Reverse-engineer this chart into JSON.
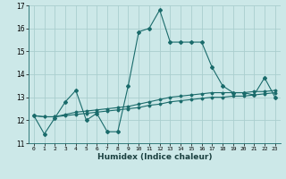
{
  "xlabel": "Humidex (Indice chaleur)",
  "background_color": "#cce8e8",
  "grid_color": "#aacece",
  "line_color": "#1a6b6b",
  "xlim": [
    -0.5,
    23.5
  ],
  "ylim": [
    11,
    17
  ],
  "yticks": [
    11,
    12,
    13,
    14,
    15,
    16,
    17
  ],
  "xticks": [
    0,
    1,
    2,
    3,
    4,
    5,
    6,
    7,
    8,
    9,
    10,
    11,
    12,
    13,
    14,
    15,
    16,
    17,
    18,
    19,
    20,
    21,
    22,
    23
  ],
  "hours": [
    0,
    1,
    2,
    3,
    4,
    5,
    6,
    7,
    8,
    9,
    10,
    11,
    12,
    13,
    14,
    15,
    16,
    17,
    18,
    19,
    20,
    21,
    22,
    23
  ],
  "main_line": [
    12.2,
    11.4,
    12.1,
    12.8,
    13.3,
    12.0,
    12.3,
    11.5,
    11.5,
    13.5,
    15.85,
    16.0,
    16.8,
    15.4,
    15.4,
    15.4,
    15.4,
    14.3,
    13.5,
    13.2,
    13.2,
    13.1,
    13.85,
    13.0
  ],
  "ref_line1": [
    12.2,
    12.15,
    12.15,
    12.25,
    12.35,
    12.4,
    12.45,
    12.5,
    12.55,
    12.6,
    12.7,
    12.8,
    12.9,
    13.0,
    13.05,
    13.1,
    13.15,
    13.2,
    13.2,
    13.2,
    13.2,
    13.25,
    13.25,
    13.3
  ],
  "ref_line2": [
    12.2,
    12.15,
    12.15,
    12.2,
    12.25,
    12.3,
    12.35,
    12.4,
    12.45,
    12.5,
    12.55,
    12.65,
    12.7,
    12.8,
    12.85,
    12.9,
    12.95,
    13.0,
    13.0,
    13.05,
    13.05,
    13.1,
    13.15,
    13.2
  ]
}
